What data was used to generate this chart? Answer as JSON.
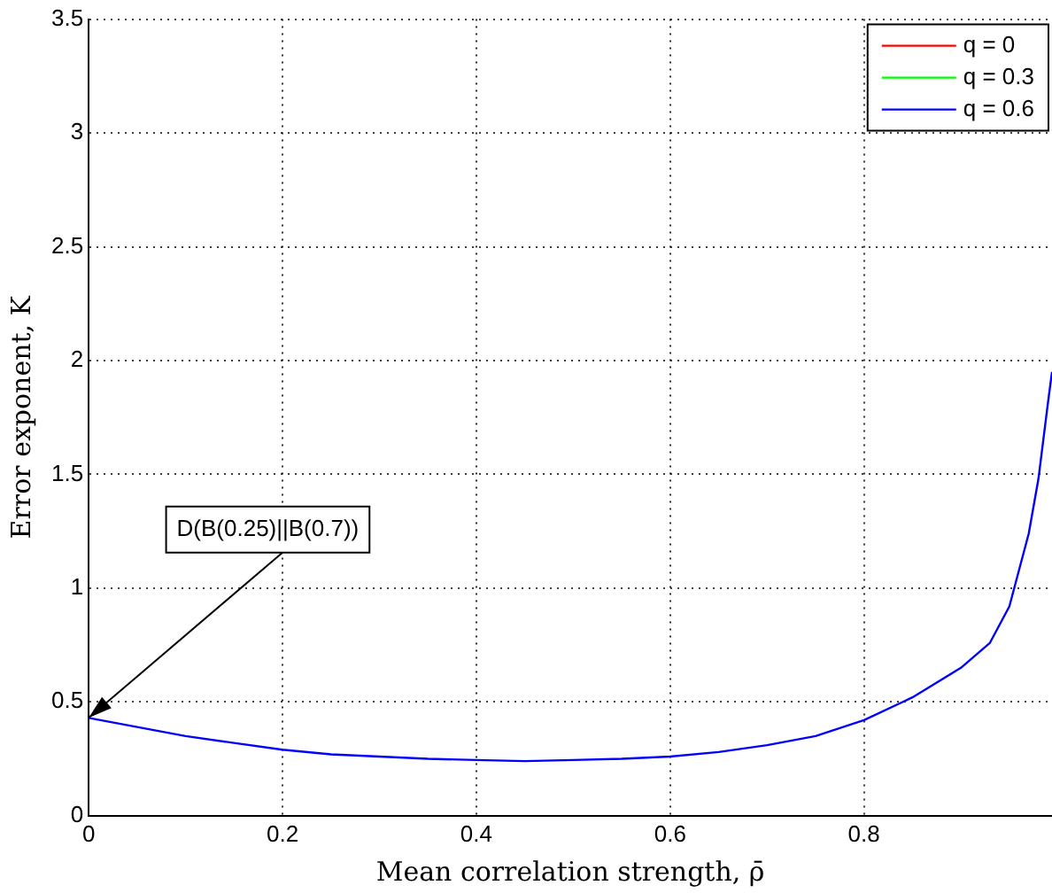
{
  "chart_data": {
    "type": "line",
    "xlabel": "Mean correlation strength, ρ̄",
    "ylabel": "Error exponent, K",
    "x": [
      0,
      0.05,
      0.1,
      0.15,
      0.2,
      0.25,
      0.3,
      0.35,
      0.4,
      0.45,
      0.5,
      0.55,
      0.6,
      0.65,
      0.7,
      0.75,
      0.8,
      0.85,
      0.9,
      0.93,
      0.95,
      0.97,
      0.98,
      0.99,
      0.994
    ],
    "series": [
      {
        "name": "q = 0",
        "color": "#ff0000",
        "values": [
          null,
          null,
          null,
          null,
          null,
          null,
          null,
          null,
          null,
          null,
          null,
          null,
          null,
          null,
          null,
          null,
          null,
          null,
          null,
          null,
          null,
          null,
          null,
          null,
          null
        ]
      },
      {
        "name": "q = 0.3",
        "color": "#00ff00",
        "values": [
          null,
          null,
          null,
          null,
          null,
          null,
          null,
          null,
          null,
          null,
          null,
          null,
          null,
          null,
          null,
          null,
          null,
          null,
          null,
          null,
          null,
          null,
          null,
          null,
          null
        ]
      },
      {
        "name": "q = 0.6",
        "color": "#0000ff",
        "values": [
          0.43,
          0.39,
          0.35,
          0.32,
          0.29,
          0.27,
          0.26,
          0.25,
          0.245,
          0.24,
          0.245,
          0.25,
          0.26,
          0.28,
          0.31,
          0.35,
          0.42,
          0.52,
          0.65,
          0.76,
          0.92,
          1.24,
          1.48,
          1.82,
          1.95
        ]
      }
    ],
    "xlim": [
      0,
      0.994
    ],
    "xticks": [
      0,
      0.2,
      0.4,
      0.6,
      0.8
    ],
    "ylim": [
      0,
      3.5
    ],
    "yticks": [
      0,
      0.5,
      1,
      1.5,
      2,
      2.5,
      3,
      3.5
    ],
    "grid": true,
    "legend": "top right",
    "line_style": "solid",
    "marker": "none",
    "annotations": [
      {
        "text": "D(B(0.25)||B(0.7))",
        "x": 0,
        "y": 0.43
      }
    ]
  }
}
